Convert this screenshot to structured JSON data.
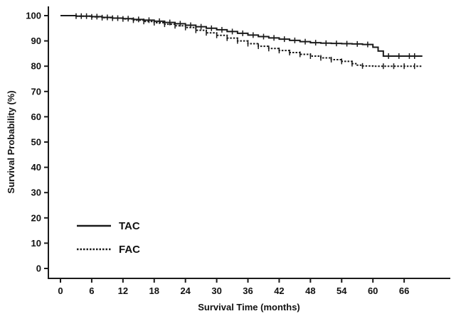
{
  "chart_data": {
    "type": "line",
    "subtype": "kaplan-meier-step",
    "title": "",
    "xlabel": "Survival Time (months)",
    "ylabel": "Survival Probability (%)",
    "xlim": [
      0,
      69.5
    ],
    "ylim": [
      0,
      100
    ],
    "x_ticks": [
      0,
      6,
      12,
      18,
      24,
      30,
      36,
      42,
      48,
      54,
      60,
      66
    ],
    "y_ticks": [
      0,
      10,
      20,
      30,
      40,
      50,
      60,
      70,
      80,
      90,
      100
    ],
    "grid": false,
    "legend_position": "inside-lower-left",
    "series": [
      {
        "name": "TAC",
        "line_style": "solid",
        "color": "#1a1a1a",
        "steps": [
          [
            0,
            100
          ],
          [
            3,
            99.8
          ],
          [
            6,
            99.6
          ],
          [
            8,
            99.3
          ],
          [
            10,
            99.0
          ],
          [
            12,
            98.8
          ],
          [
            14,
            98.5
          ],
          [
            16,
            98.2
          ],
          [
            18,
            97.8
          ],
          [
            20,
            97.3
          ],
          [
            22,
            96.8
          ],
          [
            24,
            96.2
          ],
          [
            26,
            95.6
          ],
          [
            28,
            95.0
          ],
          [
            30,
            94.4
          ],
          [
            32,
            93.7
          ],
          [
            34,
            93.0
          ],
          [
            36,
            92.3
          ],
          [
            38,
            91.7
          ],
          [
            40,
            91.2
          ],
          [
            42,
            90.7
          ],
          [
            44,
            90.2
          ],
          [
            46,
            89.7
          ],
          [
            48,
            89.3
          ],
          [
            50,
            89.1
          ],
          [
            52,
            89.0
          ],
          [
            54,
            88.9
          ],
          [
            56,
            88.8
          ],
          [
            58,
            88.6
          ],
          [
            60,
            87.5
          ],
          [
            61,
            86.0
          ],
          [
            62,
            84.0
          ],
          [
            69.5,
            84.0
          ]
        ],
        "censor_times": [
          3,
          5,
          7,
          9,
          11,
          13,
          15,
          17,
          19,
          21,
          23,
          25,
          27,
          29,
          31,
          33,
          35,
          37,
          39,
          41,
          43,
          45,
          47,
          49,
          51,
          53,
          55,
          57,
          59,
          63,
          65,
          67,
          68
        ]
      },
      {
        "name": "FAC",
        "line_style": "dashed",
        "color": "#1a1a1a",
        "steps": [
          [
            0,
            100
          ],
          [
            3,
            99.8
          ],
          [
            6,
            99.5
          ],
          [
            8,
            99.2
          ],
          [
            10,
            99.0
          ],
          [
            12,
            98.7
          ],
          [
            14,
            98.2
          ],
          [
            16,
            97.7
          ],
          [
            18,
            97.2
          ],
          [
            20,
            96.6
          ],
          [
            22,
            96.0
          ],
          [
            24,
            95.3
          ],
          [
            26,
            94.2
          ],
          [
            28,
            93.2
          ],
          [
            30,
            92.2
          ],
          [
            32,
            91.1
          ],
          [
            34,
            90.0
          ],
          [
            36,
            88.9
          ],
          [
            38,
            87.9
          ],
          [
            40,
            87.0
          ],
          [
            42,
            86.2
          ],
          [
            44,
            85.4
          ],
          [
            46,
            84.7
          ],
          [
            48,
            84.0
          ],
          [
            50,
            83.3
          ],
          [
            52,
            82.6
          ],
          [
            54,
            81.9
          ],
          [
            56,
            81.0
          ],
          [
            57,
            80.4
          ],
          [
            58,
            80.1
          ],
          [
            60,
            80.0
          ],
          [
            69.5,
            80.0
          ]
        ],
        "censor_times": [
          4,
          6,
          8,
          10,
          12,
          14,
          16,
          18,
          20,
          22,
          24,
          26,
          28,
          30,
          32,
          34,
          36,
          38,
          40,
          42,
          44,
          46,
          48,
          50,
          52,
          54,
          56,
          58,
          62,
          64,
          66,
          68
        ]
      }
    ]
  },
  "legend": {
    "items": [
      {
        "label": "TAC",
        "style": "solid"
      },
      {
        "label": "FAC",
        "style": "dashed"
      }
    ]
  },
  "colors": {
    "axis": "#1a1a1a",
    "background": "#ffffff",
    "text": "#111111"
  }
}
